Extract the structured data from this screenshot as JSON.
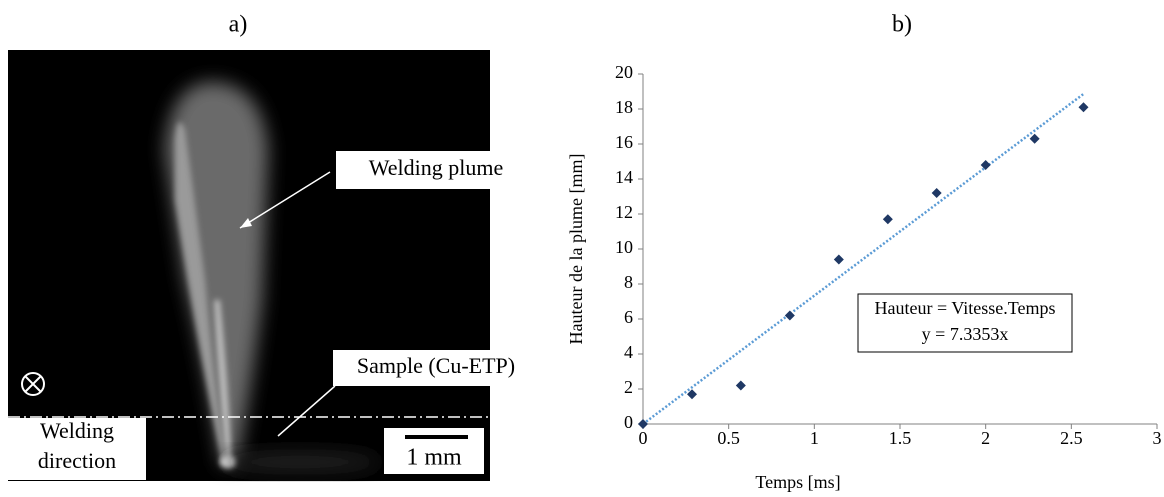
{
  "panel_labels": {
    "a": "a)",
    "b": "b)"
  },
  "photo": {
    "plume_label": "Welding plume",
    "sample_label": "Sample (Cu-ETP)",
    "direction_label": [
      "Welding",
      "direction"
    ],
    "scale_label": "1 mm"
  },
  "chart_data": {
    "type": "scatter",
    "x_label": "Temps [ms]",
    "y_label": "Hauteur de la plume [mm]",
    "x": [
      0,
      0.286,
      0.571,
      0.857,
      1.143,
      1.429,
      1.714,
      2.0,
      2.286,
      2.571
    ],
    "series": [
      {
        "color": "#1f3864",
        "values": [
          0,
          1.7,
          2.2,
          6.2,
          9.4,
          11.7,
          13.2,
          14.8,
          16.3,
          18.1
        ]
      }
    ],
    "trendline": {
      "slope": 7.3353,
      "color": "#5b9bd5",
      "annotation": [
        "Hauteur = Vitesse.Temps",
        "y = 7.3353x"
      ]
    },
    "xlim": [
      0,
      3
    ],
    "xticks": [
      0,
      0.5,
      1,
      1.5,
      2,
      2.5,
      3
    ],
    "ylim": [
      0,
      20
    ],
    "yticks": [
      0,
      2,
      4,
      6,
      8,
      10,
      12,
      14,
      16,
      18,
      20
    ],
    "grid": false
  }
}
